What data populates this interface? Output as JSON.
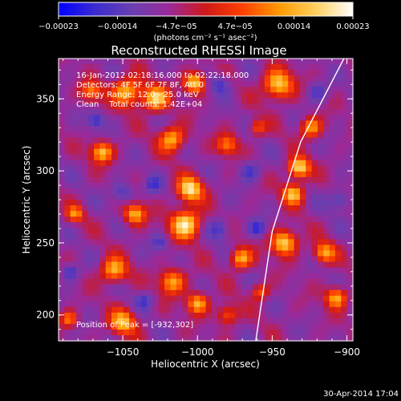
{
  "chart_data": {
    "type": "heatmap",
    "title": "Reconstructed RHESSI Image",
    "xlabel": "Heliocentric X (arcsec)",
    "ylabel": "Heliocentric Y (arcsec)",
    "xlim": [
      -1093,
      -896
    ],
    "ylim": [
      182,
      378
    ],
    "x_ticks": [
      {
        "value": -1050,
        "label": "−1050"
      },
      {
        "value": -1000,
        "label": "−1000"
      },
      {
        "value": -950,
        "label": "−950"
      },
      {
        "value": -900,
        "label": "−900"
      }
    ],
    "y_ticks": [
      {
        "value": 200,
        "label": "200"
      },
      {
        "value": 250,
        "label": "250"
      },
      {
        "value": 300,
        "label": "300"
      },
      {
        "value": 350,
        "label": "350"
      }
    ],
    "colorbar": {
      "min": -0.00023,
      "max": 0.00023,
      "tick_labels": [
        "−0.00023",
        "−0.00014",
        "−4.7e−05",
        "4.7e−05",
        "0.00014",
        "0.00023"
      ],
      "unit_label": "(photons cm⁻² s⁻¹ asec⁻²)",
      "colors": [
        "#0000ff",
        "#3b2cd0",
        "#6a3fb0",
        "#9a2a9a",
        "#d01818",
        "#ff4000",
        "#ff9a00",
        "#ffd060",
        "#ffffff"
      ]
    },
    "annotations": [
      "16-Jan-2012 02:18:16.000 to 02:22:18.000",
      "Detectors: 4F 5F 6F 7F 8F, Att 0",
      "Energy Range: 12.0 - 25.0 keV",
      "Clean    Total counts: 1.42E+04"
    ],
    "peak_label": "Position of Peak = [-932,302]",
    "peak": {
      "x": -932,
      "y": 302
    },
    "limb_line": [
      {
        "x": -961,
        "y": 182
      },
      {
        "x": -950,
        "y": 258
      },
      {
        "x": -931,
        "y": 320
      },
      {
        "x": -902,
        "y": 378
      }
    ],
    "sources": [
      {
        "x": -1064,
        "y": 313,
        "s": 5,
        "a": 0.85
      },
      {
        "x": -1071,
        "y": 355,
        "s": 5,
        "a": 0.6
      },
      {
        "x": -1047,
        "y": 355,
        "s": 7,
        "a": 0.8
      },
      {
        "x": -1028,
        "y": 350,
        "s": 6,
        "a": 0.9
      },
      {
        "x": -1002,
        "y": 361,
        "s": 5,
        "a": 0.95
      },
      {
        "x": -1017,
        "y": 322,
        "s": 6,
        "a": 0.8
      },
      {
        "x": -1005,
        "y": 287,
        "s": 6,
        "a": 0.95
      },
      {
        "x": -1008,
        "y": 263,
        "s": 7,
        "a": 1.0
      },
      {
        "x": -1042,
        "y": 270,
        "s": 5,
        "a": 0.8
      },
      {
        "x": -1056,
        "y": 231,
        "s": 6,
        "a": 0.8
      },
      {
        "x": -1050,
        "y": 195,
        "s": 6,
        "a": 0.8
      },
      {
        "x": -1017,
        "y": 223,
        "s": 6,
        "a": 0.75
      },
      {
        "x": -1000,
        "y": 208,
        "s": 5,
        "a": 0.8
      },
      {
        "x": -980,
        "y": 200,
        "s": 5,
        "a": 0.55
      },
      {
        "x": -971,
        "y": 239,
        "s": 5,
        "a": 0.8
      },
      {
        "x": -958,
        "y": 216,
        "s": 4,
        "a": 0.55
      },
      {
        "x": -942,
        "y": 250,
        "s": 6,
        "a": 0.95
      },
      {
        "x": -936,
        "y": 284,
        "s": 5,
        "a": 0.85
      },
      {
        "x": -932,
        "y": 302,
        "s": 5,
        "a": 1.0
      },
      {
        "x": -924,
        "y": 330,
        "s": 5,
        "a": 0.7
      },
      {
        "x": -946,
        "y": 360,
        "s": 7,
        "a": 0.9
      },
      {
        "x": -915,
        "y": 243,
        "s": 5,
        "a": 0.75
      },
      {
        "x": -907,
        "y": 212,
        "s": 5,
        "a": 0.8
      },
      {
        "x": -1082,
        "y": 270,
        "s": 4,
        "a": 0.6
      },
      {
        "x": -1086,
        "y": 197,
        "s": 4,
        "a": 0.6
      },
      {
        "x": -980,
        "y": 318,
        "s": 5,
        "a": 0.6
      },
      {
        "x": -960,
        "y": 330,
        "s": 4,
        "a": 0.5
      },
      {
        "x": -1085,
        "y": 230,
        "s": 4,
        "a": -0.4
      },
      {
        "x": -1050,
        "y": 285,
        "s": 5,
        "a": -0.35
      },
      {
        "x": -1025,
        "y": 250,
        "s": 4,
        "a": -0.3
      },
      {
        "x": -985,
        "y": 360,
        "s": 5,
        "a": -0.35
      },
      {
        "x": -965,
        "y": 300,
        "s": 5,
        "a": -0.35
      },
      {
        "x": -960,
        "y": 260,
        "s": 4,
        "a": -0.4
      },
      {
        "x": -920,
        "y": 355,
        "s": 5,
        "a": -0.3
      },
      {
        "x": -985,
        "y": 260,
        "s": 5,
        "a": -0.35
      },
      {
        "x": -1035,
        "y": 210,
        "s": 4,
        "a": -0.3
      },
      {
        "x": -1068,
        "y": 335,
        "s": 4,
        "a": -0.4
      },
      {
        "x": -905,
        "y": 280,
        "s": 5,
        "a": -0.35
      },
      {
        "x": -1030,
        "y": 290,
        "s": 4,
        "a": -0.3
      }
    ]
  },
  "footer": {
    "timestamp": "30-Apr-2014 17:04"
  }
}
